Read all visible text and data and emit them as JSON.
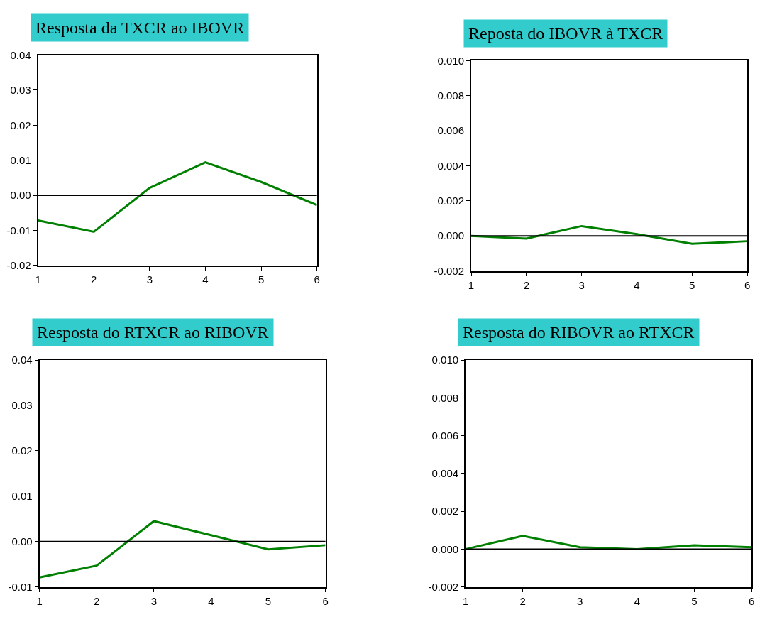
{
  "chart_data": [
    {
      "type": "line",
      "title": "Resposta da TXCR ao IBOVR",
      "x": [
        1,
        2,
        3,
        4,
        5,
        6
      ],
      "xlim": [
        1,
        6
      ],
      "xticks": [
        1,
        2,
        3,
        4,
        5,
        6
      ],
      "ylim": [
        -0.02,
        0.04
      ],
      "yticks": [
        {
          "value": -0.02,
          "label": "-0.02"
        },
        {
          "value": -0.01,
          "label": "-0.01"
        },
        {
          "value": 0,
          "label": "0.00"
        },
        {
          "value": 0.01,
          "label": "0.01"
        },
        {
          "value": 0.02,
          "label": "0.02"
        },
        {
          "value": 0.03,
          "label": "0.03"
        },
        {
          "value": 0.04,
          "label": "0.04"
        }
      ],
      "series": [
        {
          "color": "#008000",
          "values": [
            -0.0072,
            -0.0104,
            0.0021,
            0.0094,
            0.0038,
            -0.0028
          ]
        }
      ],
      "ref_lines": [
        {
          "axis": "y",
          "value": 0,
          "color": "#000000"
        }
      ]
    },
    {
      "type": "line",
      "title": "Reposta do IBOVR à TXCR",
      "x": [
        1,
        2,
        3,
        4,
        5,
        6
      ],
      "xlim": [
        1,
        6
      ],
      "xticks": [
        1,
        2,
        3,
        4,
        5,
        6
      ],
      "ylim": [
        -0.002,
        0.01
      ],
      "yticks": [
        {
          "value": -0.002,
          "label": "-0.002"
        },
        {
          "value": 0,
          "label": "0.000"
        },
        {
          "value": 0.002,
          "label": "0.002"
        },
        {
          "value": 0.004,
          "label": "0.004"
        },
        {
          "value": 0.006,
          "label": "0.006"
        },
        {
          "value": 0.008,
          "label": "0.008"
        },
        {
          "value": 0.01,
          "label": "0.010"
        }
      ],
      "series": [
        {
          "color": "#008000",
          "values": [
            0.0,
            -0.00015,
            0.00056,
            0.0001,
            -0.00045,
            -0.0003
          ]
        }
      ],
      "ref_lines": [
        {
          "axis": "y",
          "value": 0,
          "color": "#000000"
        }
      ]
    },
    {
      "type": "line",
      "title": "Resposta do RTXCR ao RIBOVR",
      "x": [
        1,
        2,
        3,
        4,
        5,
        6
      ],
      "xlim": [
        1,
        6
      ],
      "xticks": [
        1,
        2,
        3,
        4,
        5,
        6
      ],
      "ylim": [
        -0.01,
        0.04
      ],
      "yticks": [
        {
          "value": -0.01,
          "label": "-0.01"
        },
        {
          "value": 0,
          "label": "0.00"
        },
        {
          "value": 0.01,
          "label": "0.01"
        },
        {
          "value": 0.02,
          "label": "0.02"
        },
        {
          "value": 0.03,
          "label": "0.03"
        },
        {
          "value": 0.04,
          "label": "0.04"
        }
      ],
      "series": [
        {
          "color": "#008000",
          "values": [
            -0.0079,
            -0.0053,
            0.0045,
            0.0014,
            -0.0017,
            -0.0008
          ]
        }
      ],
      "ref_lines": [
        {
          "axis": "y",
          "value": 0,
          "color": "#000000"
        }
      ]
    },
    {
      "type": "line",
      "title": "Resposta do RIBOVR ao RTXCR",
      "x": [
        1,
        2,
        3,
        4,
        5,
        6
      ],
      "xlim": [
        1,
        6
      ],
      "xticks": [
        1,
        2,
        3,
        4,
        5,
        6
      ],
      "ylim": [
        -0.002,
        0.01
      ],
      "yticks": [
        {
          "value": -0.002,
          "label": "-0.002"
        },
        {
          "value": 0,
          "label": "0.000"
        },
        {
          "value": 0.002,
          "label": "0.002"
        },
        {
          "value": 0.004,
          "label": "0.004"
        },
        {
          "value": 0.006,
          "label": "0.006"
        },
        {
          "value": 0.008,
          "label": "0.008"
        },
        {
          "value": 0.01,
          "label": "0.010"
        }
      ],
      "series": [
        {
          "color": "#008000",
          "values": [
            0.0,
            0.0007,
            0.0001,
            0.0,
            0.0002,
            0.0001
          ]
        }
      ],
      "ref_lines": [
        {
          "axis": "y",
          "value": 0,
          "color": "#000000"
        }
      ]
    }
  ]
}
